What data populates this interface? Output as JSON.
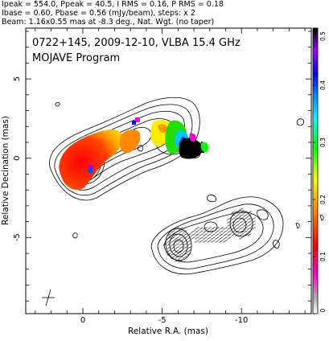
{
  "header": {
    "line1": "Ipeak = 554.0, Ppeak = 40.5, I RMS = 0.16, P RMS = 0.18",
    "line2": "Ibase = 0.60, Pbase = 0.56 (mJy/beam), steps: x 2",
    "line3": "Beam: 1.16x0.55 mas at -8.3 deg., Nat. Wgt. (no taper)"
  },
  "chart_data": {
    "type": "heatmap",
    "title": "0722+145, 2009-12-10, VLBA 15.4 GHz",
    "subtitle": "MOJAVE Program",
    "xlabel": "Relative R.A. (mas)",
    "ylabel": "Relative Decination (mas)",
    "xlim": [
      3.6,
      -14.4
    ],
    "ylim": [
      -9.8,
      8.2
    ],
    "x_ticks": [
      0,
      -5,
      -10
    ],
    "y_ticks": [
      5,
      0,
      -5
    ],
    "colorbar": {
      "range": [
        0,
        0.5
      ],
      "ticks": [
        0,
        0.1,
        0.2,
        0.3,
        0.4,
        0.5
      ],
      "colors": [
        "#ffffff",
        "#b4b4b4",
        "#ff00c8",
        "#ff0000",
        "#ff8800",
        "#ffff00",
        "#00ff00",
        "#00ffff",
        "#0080ff",
        "#0000ff",
        "#a000ff",
        "#000000"
      ]
    },
    "stokes_i_contours": {
      "peak_mjy_per_beam": 554.0,
      "base_mjy_per_beam": 0.6,
      "step_factor": 2,
      "core_position": [
        0,
        0
      ]
    },
    "polarized_intensity_peak_mjy_per_beam": 40.5,
    "secondary_panel_offset": [
      -6,
      -7.5
    ]
  }
}
